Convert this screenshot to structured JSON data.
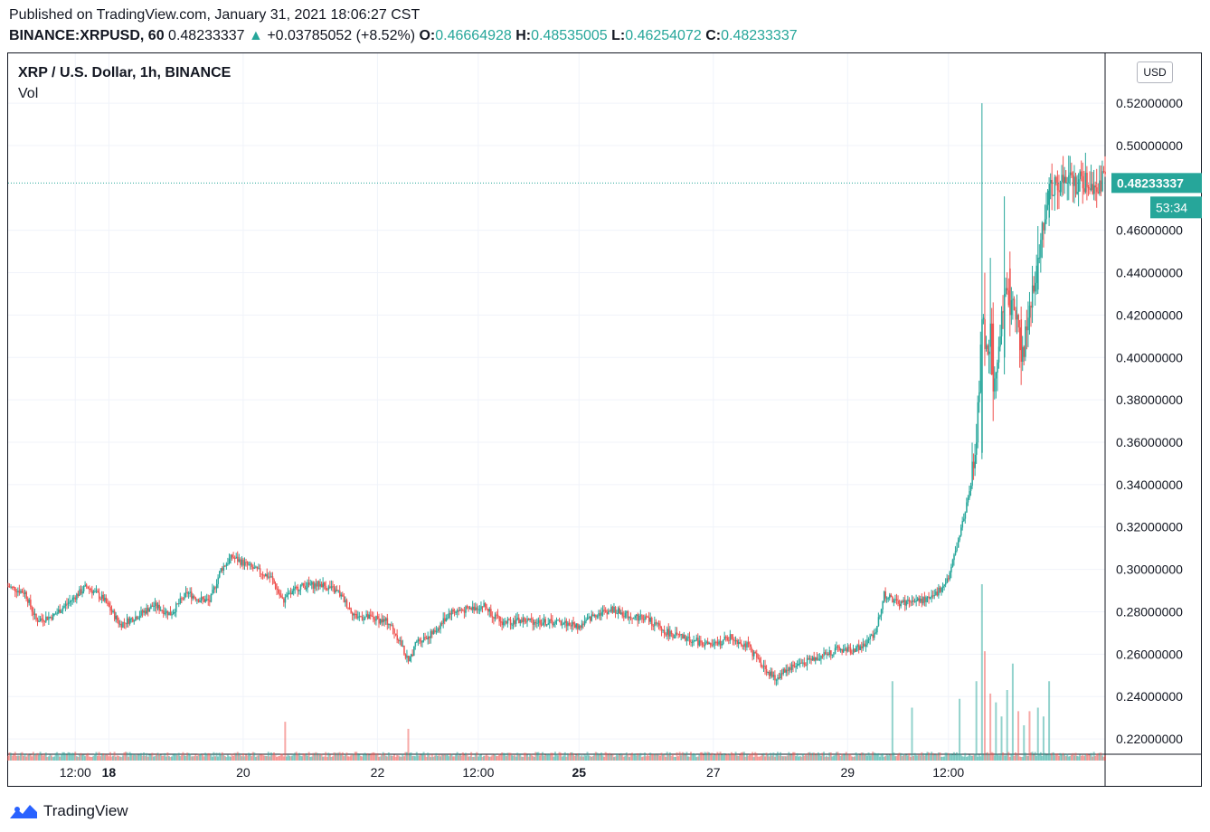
{
  "header": {
    "published": "Published on TradingView.com, January 31, 2021 18:06:27 CST",
    "symbol": "BINANCE:XRPUSD, 60",
    "last": "0.48233337",
    "arrow": "▲",
    "change": "+0.03785052 (+8.52%)",
    "o_label": "O:",
    "o": "0.46664928",
    "h_label": "H:",
    "h": "0.48535005",
    "l_label": "L:",
    "l": "0.46254072",
    "c_label": "C:",
    "c": "0.48233337"
  },
  "legend": {
    "title": "XRP / U.S. Dollar, 1h, BINANCE",
    "vol": "Vol"
  },
  "currency_button": "USD",
  "footer": {
    "brand": "TradingView"
  },
  "colors": {
    "up": "#26a69a",
    "down": "#ef5350",
    "grid": "#f0f3fa",
    "text": "#131722"
  },
  "chart_data": {
    "type": "candlestick",
    "y_axis": {
      "ticks": [
        "0.22000000",
        "0.24000000",
        "0.26000000",
        "0.28000000",
        "0.30000000",
        "0.32000000",
        "0.34000000",
        "0.36000000",
        "0.38000000",
        "0.40000000",
        "0.42000000",
        "0.44000000",
        "0.46000000",
        "0.50000000",
        "0.52000000"
      ],
      "range": [
        0.2115,
        0.5435
      ]
    },
    "x_axis": {
      "ticks": [
        {
          "label": "12:00",
          "t": 36,
          "bold": false
        },
        {
          "label": "18",
          "t": 48,
          "bold": true
        },
        {
          "label": "20",
          "t": 96,
          "bold": false
        },
        {
          "label": "22",
          "t": 144,
          "bold": false
        },
        {
          "label": "12:00",
          "t": 180,
          "bold": false
        },
        {
          "label": "25",
          "t": 216,
          "bold": true
        },
        {
          "label": "27",
          "t": 264,
          "bold": false
        },
        {
          "label": "29",
          "t": 312,
          "bold": false
        },
        {
          "label": "12:00",
          "t": 348,
          "bold": false
        }
      ],
      "range": [
        12,
        404
      ]
    },
    "last_price": "0.48233337",
    "last_value": 0.48233337,
    "countdown": "53:34",
    "price_path": [
      [
        12,
        0.292
      ],
      [
        18,
        0.289
      ],
      [
        22,
        0.276
      ],
      [
        28,
        0.278
      ],
      [
        34,
        0.285
      ],
      [
        40,
        0.292
      ],
      [
        46,
        0.286
      ],
      [
        52,
        0.274
      ],
      [
        58,
        0.278
      ],
      [
        64,
        0.283
      ],
      [
        70,
        0.279
      ],
      [
        76,
        0.289
      ],
      [
        80,
        0.286
      ],
      [
        84,
        0.285
      ],
      [
        88,
        0.3
      ],
      [
        92,
        0.306
      ],
      [
        100,
        0.3
      ],
      [
        106,
        0.296
      ],
      [
        110,
        0.285
      ],
      [
        116,
        0.292
      ],
      [
        124,
        0.293
      ],
      [
        130,
        0.289
      ],
      [
        136,
        0.278
      ],
      [
        142,
        0.277
      ],
      [
        148,
        0.275
      ],
      [
        152,
        0.266
      ],
      [
        155,
        0.256
      ],
      [
        158,
        0.266
      ],
      [
        164,
        0.27
      ],
      [
        170,
        0.28
      ],
      [
        176,
        0.281
      ],
      [
        182,
        0.283
      ],
      [
        188,
        0.275
      ],
      [
        196,
        0.276
      ],
      [
        204,
        0.275
      ],
      [
        210,
        0.275
      ],
      [
        216,
        0.273
      ],
      [
        222,
        0.279
      ],
      [
        228,
        0.281
      ],
      [
        234,
        0.278
      ],
      [
        240,
        0.277
      ],
      [
        246,
        0.271
      ],
      [
        252,
        0.268
      ],
      [
        258,
        0.266
      ],
      [
        264,
        0.264
      ],
      [
        270,
        0.268
      ],
      [
        276,
        0.264
      ],
      [
        282,
        0.254
      ],
      [
        286,
        0.248
      ],
      [
        290,
        0.253
      ],
      [
        296,
        0.256
      ],
      [
        302,
        0.259
      ],
      [
        308,
        0.262
      ],
      [
        314,
        0.262
      ],
      [
        318,
        0.264
      ],
      [
        322,
        0.271
      ],
      [
        325,
        0.288
      ],
      [
        330,
        0.284
      ],
      [
        336,
        0.285
      ],
      [
        342,
        0.286
      ],
      [
        348,
        0.296
      ],
      [
        352,
        0.316
      ],
      [
        356,
        0.34
      ],
      [
        358,
        0.36
      ],
      [
        360,
        0.418
      ],
      [
        362,
        0.405
      ],
      [
        364,
        0.384
      ],
      [
        366,
        0.41
      ],
      [
        368,
        0.426
      ],
      [
        370,
        0.43
      ],
      [
        372,
        0.422
      ],
      [
        374,
        0.4
      ],
      [
        376,
        0.412
      ],
      [
        378,
        0.43
      ],
      [
        380,
        0.443
      ],
      [
        382,
        0.465
      ],
      [
        384,
        0.482
      ]
    ],
    "candles": [
      {
        "t": 360,
        "o": 0.355,
        "h": 0.52,
        "l": 0.352,
        "c": 0.418
      },
      {
        "t": 361,
        "o": 0.418,
        "h": 0.44,
        "l": 0.396,
        "c": 0.404
      },
      {
        "t": 363,
        "o": 0.405,
        "h": 0.447,
        "l": 0.392,
        "c": 0.416
      },
      {
        "t": 364,
        "o": 0.416,
        "h": 0.426,
        "l": 0.37,
        "c": 0.384
      },
      {
        "t": 368,
        "o": 0.4,
        "h": 0.476,
        "l": 0.392,
        "c": 0.43
      },
      {
        "t": 370,
        "o": 0.442,
        "h": 0.45,
        "l": 0.41,
        "c": 0.42
      },
      {
        "t": 374,
        "o": 0.418,
        "h": 0.424,
        "l": 0.387,
        "c": 0.398
      },
      {
        "t": 380,
        "o": 0.432,
        "h": 0.462,
        "l": 0.43,
        "c": 0.447
      },
      {
        "t": 384,
        "o": 0.466,
        "h": 0.485,
        "l": 0.462,
        "c": 0.482
      }
    ],
    "volume_spikes": [
      {
        "t": 111,
        "v": 0.22,
        "up": false
      },
      {
        "t": 155,
        "v": 0.18,
        "up": false
      },
      {
        "t": 328,
        "v": 0.45,
        "up": true
      },
      {
        "t": 335,
        "v": 0.3,
        "up": true
      },
      {
        "t": 352,
        "v": 0.35,
        "up": true
      },
      {
        "t": 358,
        "v": 0.45,
        "up": true
      },
      {
        "t": 360,
        "v": 1.0,
        "up": true
      },
      {
        "t": 361,
        "v": 0.62,
        "up": false
      },
      {
        "t": 363,
        "v": 0.38,
        "up": false
      },
      {
        "t": 365,
        "v": 0.33,
        "up": true
      },
      {
        "t": 367,
        "v": 0.25,
        "up": true
      },
      {
        "t": 369,
        "v": 0.4,
        "up": true
      },
      {
        "t": 371,
        "v": 0.55,
        "up": true
      },
      {
        "t": 373,
        "v": 0.28,
        "up": false
      },
      {
        "t": 375,
        "v": 0.2,
        "up": true
      },
      {
        "t": 377,
        "v": 0.28,
        "up": false
      },
      {
        "t": 380,
        "v": 0.3,
        "up": true
      },
      {
        "t": 382,
        "v": 0.25,
        "up": true
      },
      {
        "t": 384,
        "v": 0.45,
        "up": true
      }
    ]
  }
}
